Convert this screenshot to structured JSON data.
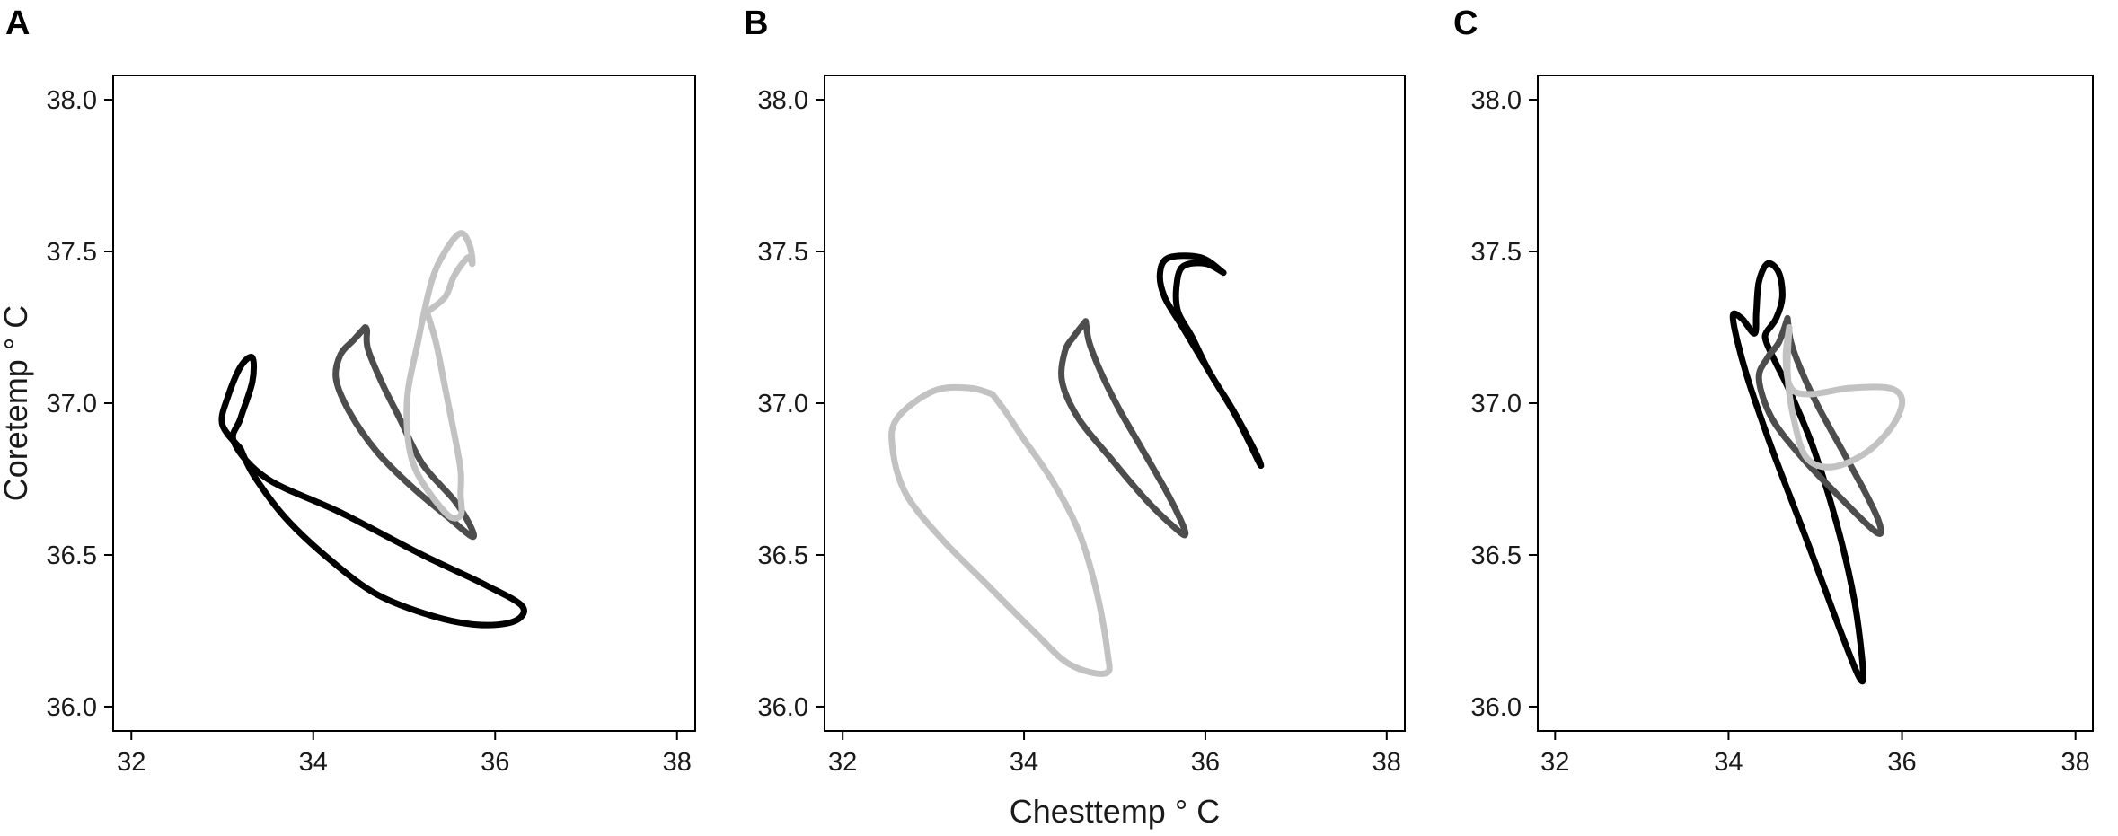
{
  "chart_data": [
    {
      "type": "line",
      "panel_label": "A",
      "xlabel": "",
      "ylabel": "Coretemp ° C",
      "xlim": [
        31.8,
        38.2
      ],
      "ylim": [
        35.92,
        38.08
      ],
      "xticks": [
        "32",
        "34",
        "36",
        "38"
      ],
      "yticks": [
        "36.0",
        "36.5",
        "37.0",
        "37.5",
        "38.0"
      ],
      "grid": false,
      "series": [
        {
          "color": "#000000",
          "points": [
            [
              33.2,
              36.85
            ],
            [
              33.0,
              36.93
            ],
            [
              33.06,
              37.02
            ],
            [
              33.2,
              37.12
            ],
            [
              33.33,
              37.15
            ],
            [
              33.33,
              37.07
            ],
            [
              33.2,
              36.95
            ],
            [
              33.13,
              36.87
            ],
            [
              33.5,
              36.75
            ],
            [
              34.3,
              36.64
            ],
            [
              35.2,
              36.5
            ],
            [
              35.9,
              36.4
            ],
            [
              36.3,
              36.33
            ],
            [
              36.2,
              36.28
            ],
            [
              35.8,
              36.27
            ],
            [
              35.3,
              36.3
            ],
            [
              34.7,
              36.37
            ],
            [
              34.2,
              36.48
            ],
            [
              33.7,
              36.62
            ],
            [
              33.35,
              36.76
            ],
            [
              33.2,
              36.85
            ]
          ]
        },
        {
          "color": "#4d4d4d",
          "points": [
            [
              34.57,
              37.25
            ],
            [
              34.45,
              37.21
            ],
            [
              34.3,
              37.16
            ],
            [
              34.25,
              37.08
            ],
            [
              34.4,
              36.97
            ],
            [
              34.7,
              36.84
            ],
            [
              35.1,
              36.72
            ],
            [
              35.5,
              36.62
            ],
            [
              35.75,
              36.56
            ],
            [
              35.72,
              36.6
            ],
            [
              35.55,
              36.68
            ],
            [
              35.2,
              36.8
            ],
            [
              34.95,
              36.95
            ],
            [
              34.75,
              37.07
            ],
            [
              34.6,
              37.18
            ],
            [
              34.59,
              37.24
            ],
            [
              34.57,
              37.25
            ]
          ]
        },
        {
          "color": "#c2c2c2",
          "points": [
            [
              35.25,
              37.3
            ],
            [
              35.45,
              37.35
            ],
            [
              35.55,
              37.42
            ],
            [
              35.7,
              37.48
            ],
            [
              35.75,
              37.46
            ],
            [
              35.72,
              37.52
            ],
            [
              35.62,
              37.56
            ],
            [
              35.45,
              37.5
            ],
            [
              35.3,
              37.4
            ],
            [
              35.15,
              37.2
            ],
            [
              35.03,
              37.0
            ],
            [
              35.1,
              36.8
            ],
            [
              35.45,
              36.64
            ],
            [
              35.62,
              36.63
            ],
            [
              35.62,
              36.7
            ],
            [
              35.62,
              36.78
            ],
            [
              35.55,
              36.9
            ],
            [
              35.45,
              37.05
            ],
            [
              35.35,
              37.2
            ],
            [
              35.25,
              37.3
            ]
          ]
        }
      ]
    },
    {
      "type": "line",
      "panel_label": "B",
      "xlabel": "Chesttemp ° C",
      "ylabel": "",
      "xlim": [
        31.8,
        38.2
      ],
      "ylim": [
        35.92,
        38.08
      ],
      "xticks": [
        "32",
        "34",
        "36",
        "38"
      ],
      "yticks": [
        "36.0",
        "36.5",
        "37.0",
        "37.5",
        "38.0"
      ],
      "grid": false,
      "series": [
        {
          "color": "#c2c2c2",
          "points": [
            [
              33.65,
              37.03
            ],
            [
              33.4,
              37.05
            ],
            [
              33.0,
              37.04
            ],
            [
              32.6,
              36.95
            ],
            [
              32.55,
              36.85
            ],
            [
              32.7,
              36.7
            ],
            [
              33.1,
              36.55
            ],
            [
              33.6,
              36.4
            ],
            [
              34.1,
              36.25
            ],
            [
              34.5,
              36.14
            ],
            [
              34.9,
              36.11
            ],
            [
              34.92,
              36.18
            ],
            [
              34.8,
              36.38
            ],
            [
              34.6,
              36.58
            ],
            [
              34.3,
              36.75
            ],
            [
              34.0,
              36.88
            ],
            [
              33.8,
              36.97
            ],
            [
              33.65,
              37.03
            ]
          ]
        },
        {
          "color": "#4d4d4d",
          "points": [
            [
              34.68,
              37.27
            ],
            [
              34.55,
              37.22
            ],
            [
              34.45,
              37.17
            ],
            [
              34.42,
              37.07
            ],
            [
              34.6,
              36.95
            ],
            [
              34.95,
              36.82
            ],
            [
              35.35,
              36.68
            ],
            [
              35.7,
              36.58
            ],
            [
              35.78,
              36.57
            ],
            [
              35.72,
              36.62
            ],
            [
              35.55,
              36.72
            ],
            [
              35.3,
              36.85
            ],
            [
              35.05,
              36.98
            ],
            [
              34.85,
              37.1
            ],
            [
              34.72,
              37.2
            ],
            [
              34.68,
              37.27
            ]
          ]
        },
        {
          "color": "#000000",
          "points": [
            [
              36.2,
              37.43
            ],
            [
              35.95,
              37.48
            ],
            [
              35.6,
              37.48
            ],
            [
              35.5,
              37.43
            ],
            [
              35.55,
              37.35
            ],
            [
              35.75,
              37.25
            ],
            [
              36.05,
              37.1
            ],
            [
              36.35,
              36.95
            ],
            [
              36.6,
              36.8
            ],
            [
              36.55,
              36.84
            ],
            [
              36.3,
              36.98
            ],
            [
              36.05,
              37.1
            ],
            [
              35.85,
              37.22
            ],
            [
              35.7,
              37.3
            ],
            [
              35.68,
              37.38
            ],
            [
              35.75,
              37.45
            ],
            [
              36.0,
              37.46
            ],
            [
              36.2,
              37.43
            ]
          ]
        }
      ]
    },
    {
      "type": "line",
      "panel_label": "C",
      "xlabel": "",
      "ylabel": "",
      "xlim": [
        31.8,
        38.2
      ],
      "ylim": [
        35.92,
        38.08
      ],
      "xticks": [
        "32",
        "34",
        "36",
        "38"
      ],
      "yticks": [
        "36.0",
        "36.5",
        "37.0",
        "37.5",
        "38.0"
      ],
      "grid": false,
      "series": [
        {
          "color": "#000000",
          "points": [
            [
              34.45,
              37.24
            ],
            [
              34.55,
              37.28
            ],
            [
              34.62,
              37.35
            ],
            [
              34.58,
              37.43
            ],
            [
              34.45,
              37.46
            ],
            [
              34.35,
              37.4
            ],
            [
              34.32,
              37.3
            ],
            [
              34.3,
              37.23
            ],
            [
              34.15,
              37.28
            ],
            [
              34.05,
              37.28
            ],
            [
              34.2,
              37.1
            ],
            [
              34.5,
              36.85
            ],
            [
              34.9,
              36.55
            ],
            [
              35.25,
              36.28
            ],
            [
              35.5,
              36.1
            ],
            [
              35.55,
              36.12
            ],
            [
              35.45,
              36.35
            ],
            [
              35.25,
              36.6
            ],
            [
              34.98,
              36.85
            ],
            [
              34.72,
              37.03
            ],
            [
              34.55,
              37.13
            ],
            [
              34.45,
              37.19
            ],
            [
              34.42,
              37.22
            ],
            [
              34.45,
              37.24
            ]
          ]
        },
        {
          "color": "#4d4d4d",
          "points": [
            [
              34.68,
              37.28
            ],
            [
              34.58,
              37.2
            ],
            [
              34.45,
              37.15
            ],
            [
              34.35,
              37.08
            ],
            [
              34.5,
              36.95
            ],
            [
              34.85,
              36.82
            ],
            [
              35.25,
              36.7
            ],
            [
              35.6,
              36.6
            ],
            [
              35.75,
              36.57
            ],
            [
              35.72,
              36.62
            ],
            [
              35.55,
              36.72
            ],
            [
              35.3,
              36.85
            ],
            [
              35.05,
              36.98
            ],
            [
              34.85,
              37.1
            ],
            [
              34.72,
              37.2
            ],
            [
              34.68,
              37.28
            ]
          ]
        },
        {
          "color": "#c2c2c2",
          "points": [
            [
              34.7,
              37.25
            ],
            [
              34.66,
              37.15
            ],
            [
              34.72,
              37.05
            ],
            [
              34.95,
              37.03
            ],
            [
              35.4,
              37.05
            ],
            [
              35.85,
              37.05
            ],
            [
              36.0,
              37.01
            ],
            [
              35.9,
              36.93
            ],
            [
              35.6,
              36.84
            ],
            [
              35.2,
              36.79
            ],
            [
              34.9,
              36.82
            ],
            [
              34.75,
              36.95
            ],
            [
              34.68,
              37.1
            ],
            [
              34.7,
              37.25
            ]
          ]
        }
      ]
    }
  ]
}
